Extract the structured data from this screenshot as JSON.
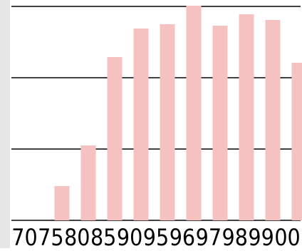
{
  "chart_data": {
    "type": "bar",
    "categories": [
      "70",
      "75",
      "80",
      "85",
      "90",
      "95",
      "96",
      "97",
      "98",
      "99",
      "00"
    ],
    "values": [
      0,
      48,
      105,
      229,
      269,
      275,
      301,
      273,
      289,
      281,
      221
    ],
    "ylim": [
      0,
      301
    ],
    "gridlines": [
      0,
      100,
      200,
      300
    ],
    "grid": true,
    "legend": "none",
    "colors": {
      "bar": "#f6c1c1",
      "grid": "#000000",
      "background": "#ffffff",
      "panel_strip": "#e6e6e6",
      "tick_text": "#000000"
    }
  }
}
